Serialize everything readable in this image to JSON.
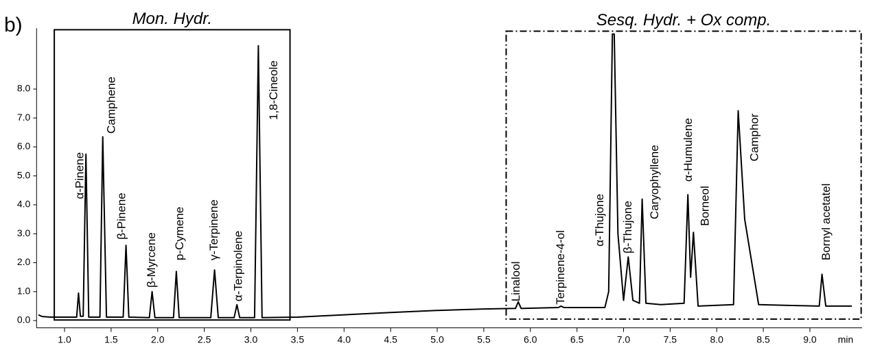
{
  "chart_data": {
    "type": "line",
    "panel_label": "b)",
    "x_label": "min",
    "xlim": [
      0.7,
      9.56
    ],
    "ylim": [
      -0.25,
      10.1
    ],
    "xticks": [
      {
        "value": 1.0,
        "label": "1.0"
      },
      {
        "value": 1.5,
        "label": "1.5"
      },
      {
        "value": 2.0,
        "label": "2.0"
      },
      {
        "value": 2.5,
        "label": "2.5"
      },
      {
        "value": 3.0,
        "label": "3.0"
      },
      {
        "value": 3.5,
        "label": "3.5"
      },
      {
        "value": 4.0,
        "label": "4.0"
      },
      {
        "value": 4.5,
        "label": "4.5"
      },
      {
        "value": 5.0,
        "label": "5.0"
      },
      {
        "value": 5.5,
        "label": "5.5"
      },
      {
        "value": 6.0,
        "label": "6.0"
      },
      {
        "value": 6.5,
        "label": "6.5"
      },
      {
        "value": 7.0,
        "label": "7.0"
      },
      {
        "value": 7.5,
        "label": "7.5"
      },
      {
        "value": 8.0,
        "label": "8.0"
      },
      {
        "value": 8.5,
        "label": "8.5"
      },
      {
        "value": 9.0,
        "label": "9.0"
      }
    ],
    "yticks": [
      {
        "value": 0,
        "label": "0.0"
      },
      {
        "value": 1,
        "label": "1.0"
      },
      {
        "value": 2,
        "label": "2.0"
      },
      {
        "value": 3,
        "label": "3.0"
      },
      {
        "value": 4,
        "label": "4.0"
      },
      {
        "value": 5,
        "label": "5.0"
      },
      {
        "value": 6,
        "label": "6.0"
      },
      {
        "value": 7,
        "label": "7.0"
      },
      {
        "value": 8,
        "label": "8.0"
      }
    ],
    "color": "#000000",
    "x": [
      0.72,
      0.76,
      0.85,
      1.1,
      1.13,
      1.15,
      1.17,
      1.2,
      1.23,
      1.26,
      1.38,
      1.41,
      1.45,
      1.63,
      1.66,
      1.69,
      1.91,
      1.94,
      1.97,
      2.17,
      2.2,
      2.23,
      2.57,
      2.61,
      2.65,
      2.82,
      2.85,
      2.88,
      3.04,
      3.08,
      3.12,
      3.5,
      4.0,
      4.5,
      5.0,
      5.5,
      5.84,
      5.87,
      5.9,
      6.3,
      6.33,
      6.36,
      6.8,
      6.84,
      6.88,
      6.9,
      6.94,
      7.0,
      7.05,
      7.1,
      7.17,
      7.2,
      7.24,
      7.4,
      7.65,
      7.69,
      7.72,
      7.75,
      7.8,
      8.18,
      8.23,
      8.3,
      8.45,
      9.1,
      9.13,
      9.17,
      9.45
    ],
    "values": [
      0.2,
      0.14,
      0.12,
      0.12,
      0.12,
      0.95,
      0.15,
      0.15,
      5.75,
      0.12,
      0.12,
      6.35,
      0.12,
      0.12,
      2.6,
      0.12,
      0.1,
      1.0,
      0.1,
      0.1,
      1.7,
      0.1,
      0.1,
      1.75,
      0.1,
      0.1,
      0.55,
      0.1,
      0.1,
      9.5,
      0.1,
      0.12,
      0.2,
      0.28,
      0.35,
      0.4,
      0.42,
      0.65,
      0.42,
      0.45,
      0.5,
      0.45,
      0.45,
      1.0,
      9.9,
      9.9,
      3.0,
      0.7,
      2.2,
      0.7,
      0.6,
      4.2,
      0.6,
      0.55,
      0.6,
      4.35,
      1.5,
      3.05,
      0.5,
      0.55,
      7.25,
      3.5,
      0.55,
      0.5,
      1.6,
      0.5,
      0.5
    ],
    "regions": [
      {
        "label": "Mon. Hydr.",
        "x": [
          0.89,
          3.42
        ],
        "y": [
          0.02,
          10.05
        ],
        "style": "solid"
      },
      {
        "label": "Sesq. Hydr. + Ox comp.",
        "x": [
          5.74,
          9.55
        ],
        "y": [
          0.05,
          10.0
        ],
        "style": "dashdot"
      }
    ],
    "annotations": [
      {
        "text": "α-Pinene",
        "x": 1.17,
        "y": 4.2
      },
      {
        "text": "Camphene",
        "x": 1.51,
        "y": 6.46
      },
      {
        "text": "β-Pinene",
        "x": 1.62,
        "y": 2.8
      },
      {
        "text": "β-Myrcene",
        "x": 1.94,
        "y": 1.14
      },
      {
        "text": "p-Cymene",
        "x": 2.24,
        "y": 2.08
      },
      {
        "text": "γ-Terpinene",
        "x": 2.61,
        "y": 2.08
      },
      {
        "text": "α-Terpinolene",
        "x": 2.87,
        "y": 0.66
      },
      {
        "text": "1,8-Cineole",
        "x": 3.25,
        "y": 6.93
      },
      {
        "text": "Linalool",
        "x": 5.85,
        "y": 0.66
      },
      {
        "text": "Terpinene-4-ol",
        "x": 6.33,
        "y": 0.55
      },
      {
        "text": "α-Thujone",
        "x": 6.75,
        "y": 2.56
      },
      {
        "text": "β-Thujone",
        "x": 7.05,
        "y": 2.32
      },
      {
        "text": "Caryophyllene",
        "x": 7.34,
        "y": 3.5
      },
      {
        "text": "α-Humulene",
        "x": 7.7,
        "y": 4.8
      },
      {
        "text": "Borneol",
        "x": 7.88,
        "y": 3.27
      },
      {
        "text": "Camphor",
        "x": 8.41,
        "y": 5.5
      },
      {
        "text": "Bornyl acetatel",
        "x": 9.18,
        "y": 2.08
      }
    ]
  }
}
